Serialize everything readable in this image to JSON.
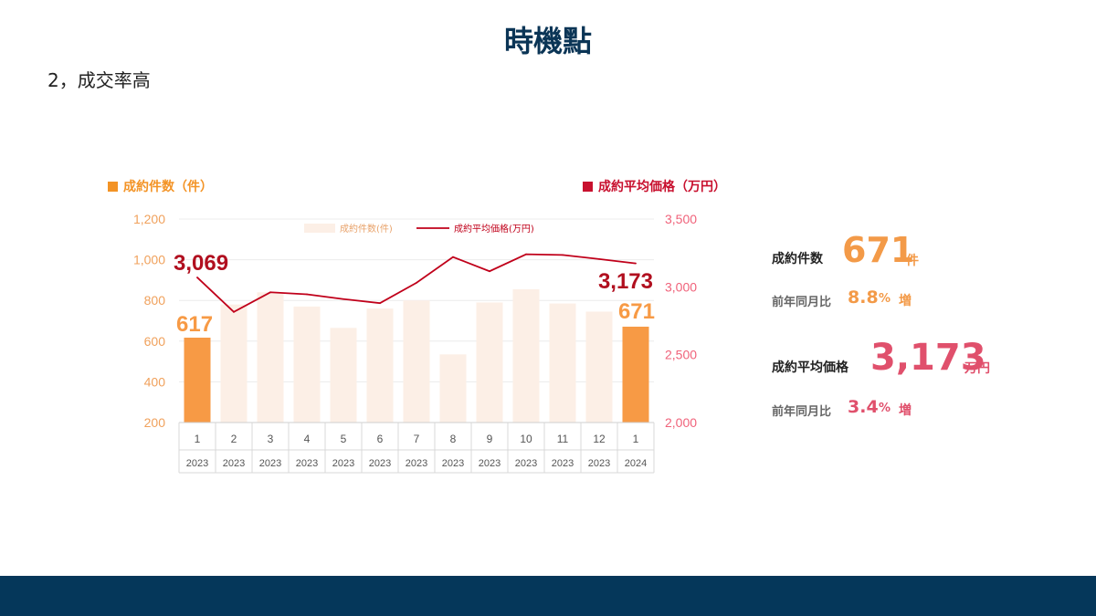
{
  "page": {
    "title": "時機點",
    "subtitle": "2，成交率高"
  },
  "chart_data": {
    "type": "bar+line",
    "legend_bar_header": "成約件数（件）",
    "legend_line_header": "成約平均価格（万円）",
    "legend_inner_bar": "成約件数(件)",
    "legend_inner_line": "成約平均価格(万円)",
    "x_months": [
      "1",
      "2",
      "3",
      "4",
      "5",
      "6",
      "7",
      "8",
      "9",
      "10",
      "11",
      "12",
      "1"
    ],
    "x_years": [
      "2023",
      "2023",
      "2023",
      "2023",
      "2023",
      "2023",
      "2023",
      "2023",
      "2023",
      "2023",
      "2023",
      "2023",
      "2024"
    ],
    "left_axis": {
      "ticks": [
        "1,200",
        "1,000",
        "800",
        "600",
        "400",
        "200"
      ],
      "ylim": [
        200,
        1200
      ]
    },
    "right_axis": {
      "ticks": [
        "3,500",
        "3,000",
        "2,500",
        "2,000"
      ],
      "ylim": [
        2000,
        3500
      ]
    },
    "series": [
      {
        "name": "成約件数(件)",
        "axis": "left",
        "values": [
          617,
          780,
          840,
          770,
          665,
          760,
          800,
          535,
          790,
          855,
          785,
          745,
          671
        ]
      },
      {
        "name": "成約平均価格(万円)",
        "axis": "right",
        "values": [
          3069,
          2815,
          2960,
          2945,
          2910,
          2880,
          3030,
          3220,
          3115,
          3240,
          3235,
          3205,
          3173
        ]
      }
    ],
    "highlight_indices": [
      0,
      12
    ],
    "data_labels": {
      "first_bar": "617",
      "last_bar": "671",
      "first_line": "3,069",
      "last_line": "3,173"
    },
    "colors": {
      "bar_highlight": "#f79a45",
      "bar_faded": "#fcefe6",
      "line": "#c0001a",
      "left_axis": "#f0a15c",
      "right_axis": "#f0627a",
      "legend_bar": "#f39325",
      "legend_line": "#c8102e"
    }
  },
  "stats": {
    "count_label": "成約件数",
    "count_value": "671",
    "count_unit": "件",
    "count_yoy_label": "前年同月比",
    "count_yoy_value": "8.8",
    "count_yoy_pct": "%",
    "count_yoy_dir": "増",
    "price_label": "成約平均価格",
    "price_value": "3,173",
    "price_unit": "万円",
    "price_yoy_label": "前年同月比",
    "price_yoy_value": "3.4",
    "price_yoy_pct": "%",
    "price_yoy_dir": "増"
  }
}
